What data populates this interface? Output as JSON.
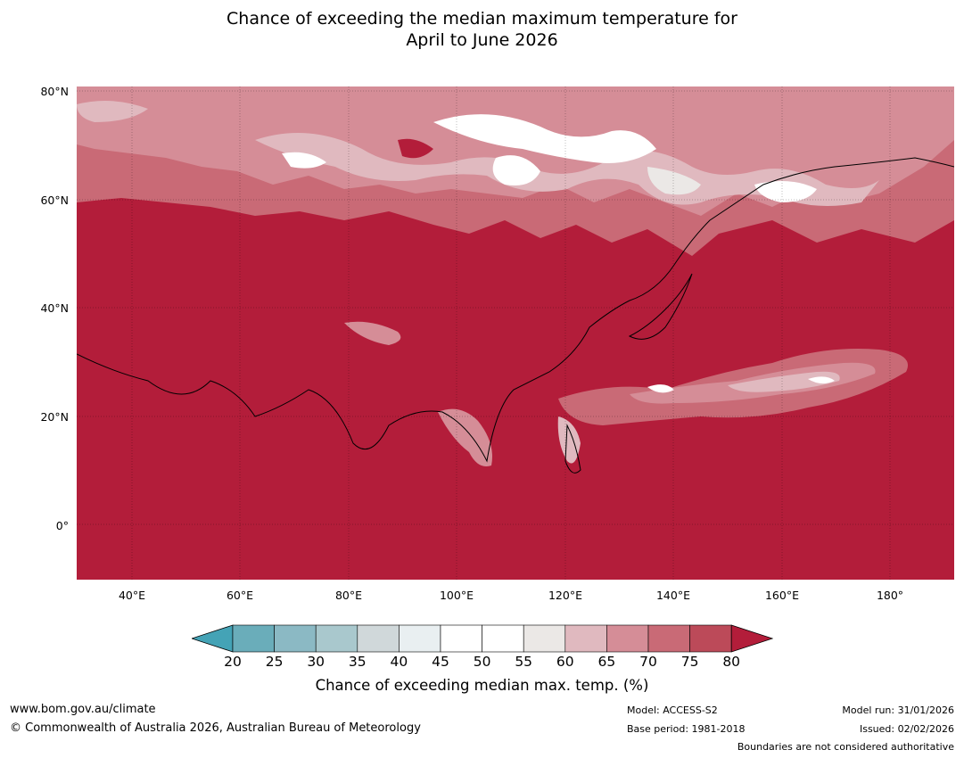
{
  "title_line1": "Chance of exceeding the median maximum temperature for",
  "title_line2": "April to June 2026",
  "lat_labels": [
    "80°N",
    "60°N",
    "40°N",
    "20°N",
    "0°"
  ],
  "lon_labels": [
    "40°E",
    "60°E",
    "80°E",
    "100°E",
    "120°E",
    "140°E",
    "160°E",
    "180°"
  ],
  "colorbar": {
    "ticks": [
      "20",
      "25",
      "30",
      "35",
      "40",
      "45",
      "50",
      "55",
      "60",
      "65",
      "70",
      "75",
      "80"
    ],
    "colors": [
      "#6aadba",
      "#8bb9c4",
      "#a9c8cd",
      "#d0d8da",
      "#e9eff1",
      "#ffffff",
      "#ffffff",
      "#ebe8e6",
      "#e0b9bf",
      "#d58d97",
      "#c96a76",
      "#bc4a59"
    ],
    "under_color": "#44a3b6",
    "over_color": "#b31d3a",
    "label": "Chance of exceeding median max. temp. (%)"
  },
  "colors": {
    "dominant": "#b31d3a",
    "mid": "#c96a76",
    "light": "#e0b9bf",
    "white": "#ffffff"
  },
  "footer": {
    "website": "www.bom.gov.au/climate",
    "copyright": "© Commonwealth of Australia 2026, Australian Bureau of Meteorology",
    "model": "Model: ACCESS-S2",
    "base_period": "Base period: 1981-2018",
    "model_run": "Model run: 31/01/2026",
    "issued": "Issued: 02/02/2026",
    "boundaries": "Boundaries are not considered authoritative"
  }
}
